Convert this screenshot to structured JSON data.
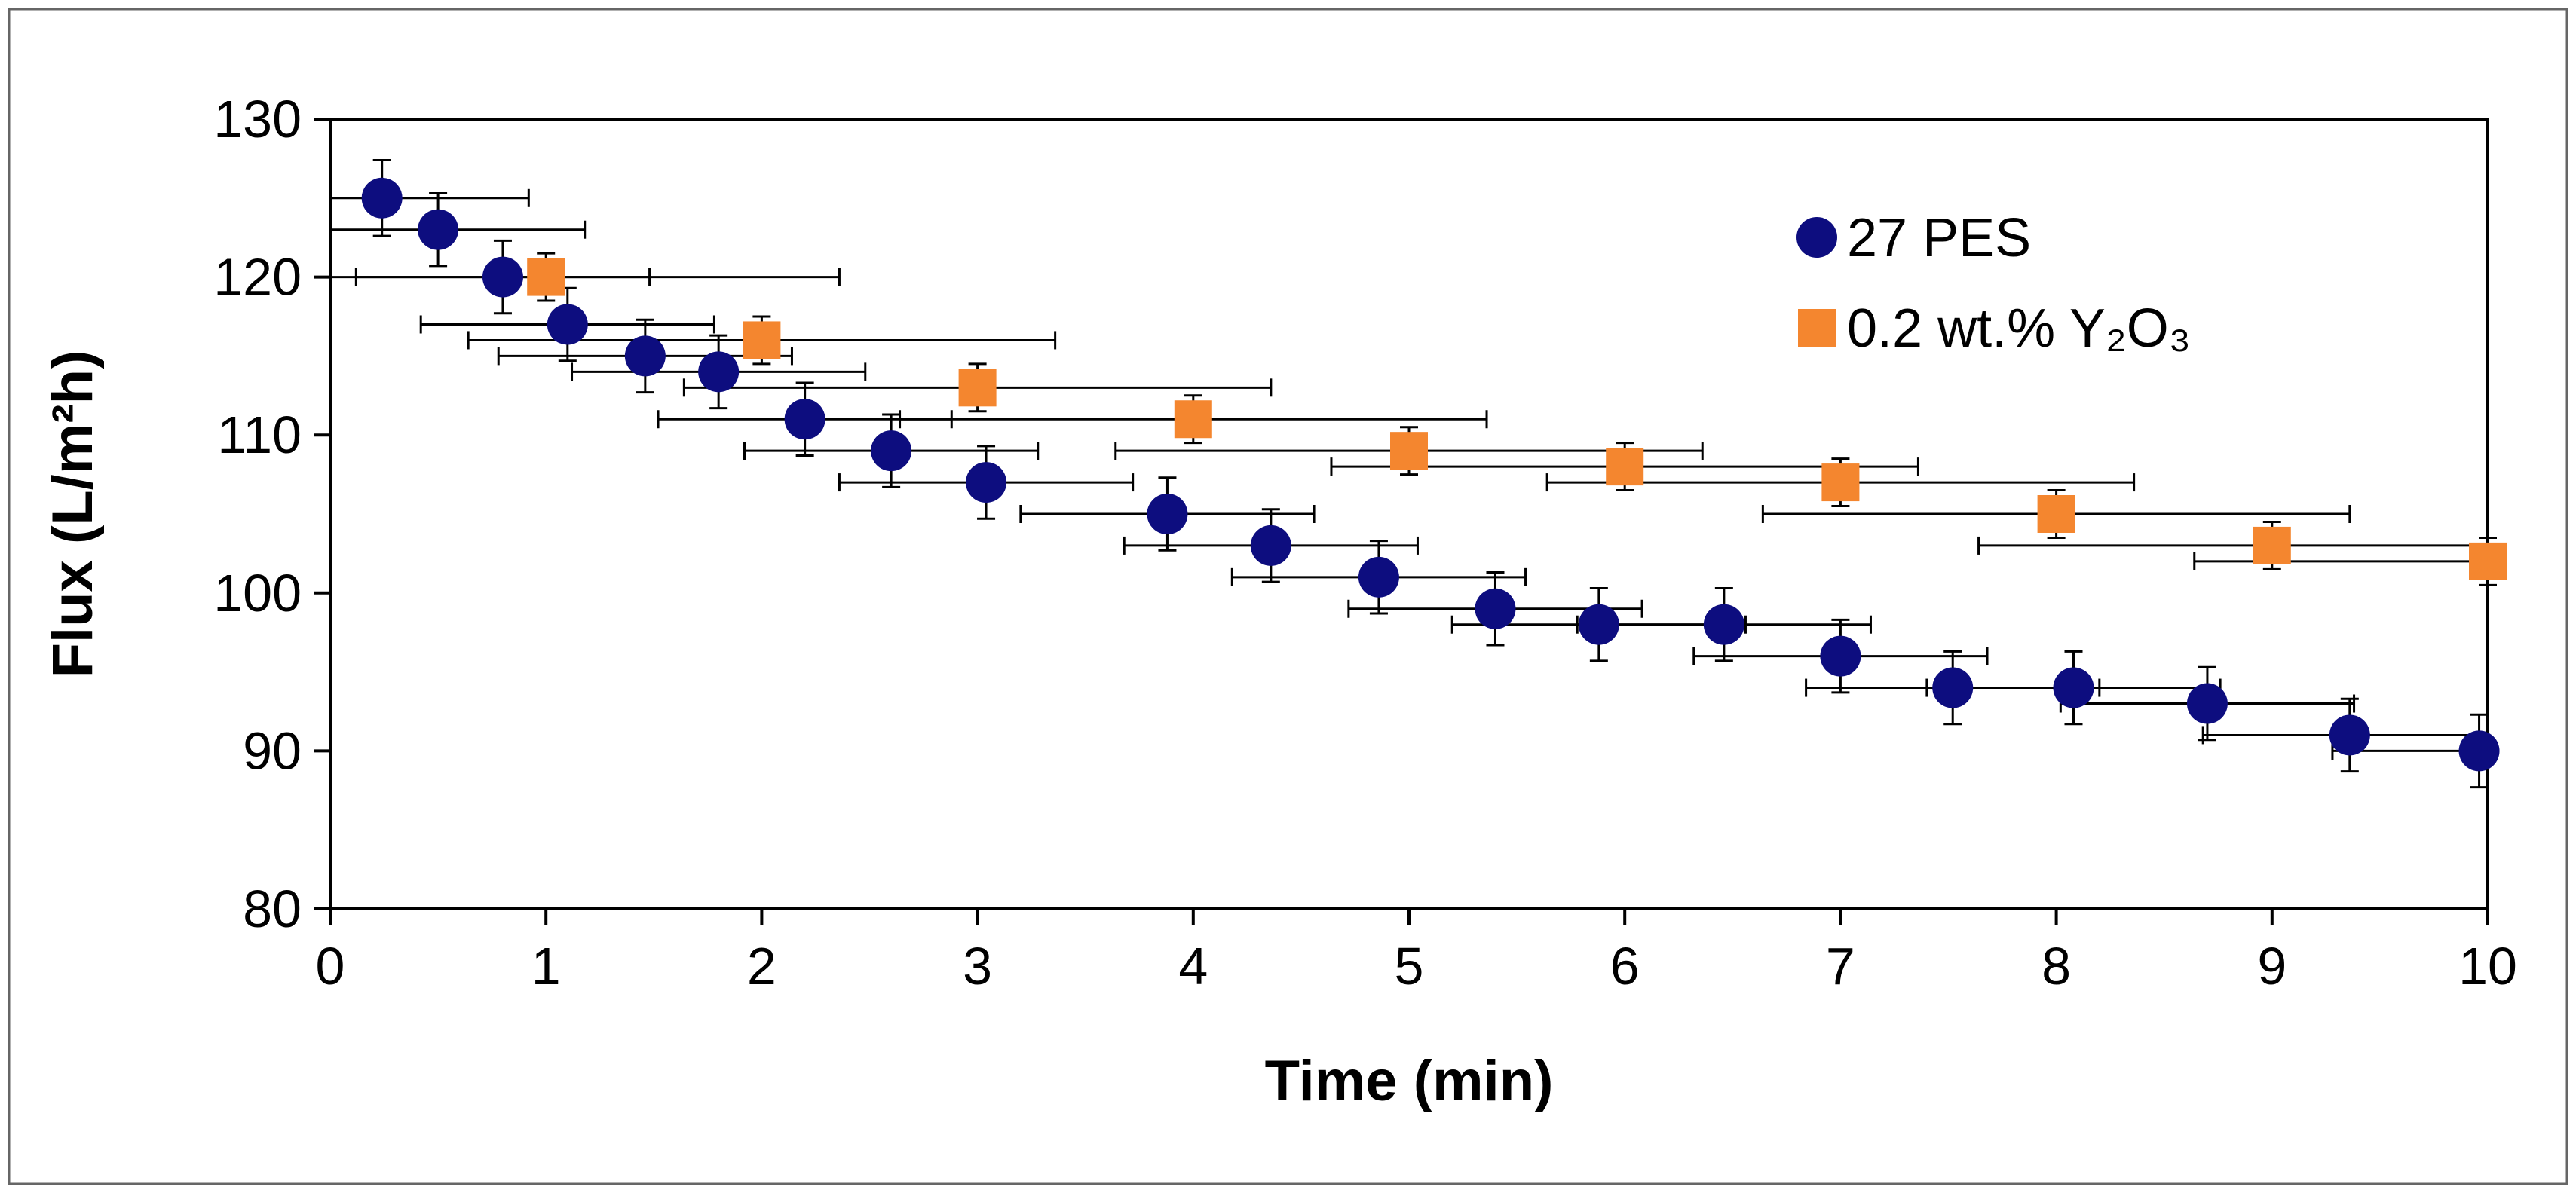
{
  "chart_data": {
    "type": "scatter",
    "title": "",
    "xlabel": "Time (min)",
    "ylabel": "Flux (L/m²h)",
    "xlim": [
      0,
      10
    ],
    "ylim": [
      80,
      130
    ],
    "x_ticks": [
      "0",
      "1",
      "2",
      "3",
      "4",
      "5",
      "6",
      "7",
      "8",
      "9",
      "10"
    ],
    "y_ticks": [
      "80",
      "90",
      "100",
      "110",
      "120",
      "130"
    ],
    "grid": false,
    "legend_position": "top-right",
    "series": [
      {
        "name": "27 PES",
        "marker": "circle",
        "color": "#0d0d7f",
        "points": [
          {
            "x": 0.24,
            "y": 125,
            "xerr": 0.68,
            "yerr": 2.4
          },
          {
            "x": 0.5,
            "y": 123,
            "xerr": 0.68,
            "yerr": 2.3
          },
          {
            "x": 0.8,
            "y": 120,
            "xerr": 0.68,
            "yerr": 2.3
          },
          {
            "x": 1.1,
            "y": 117,
            "xerr": 0.68,
            "yerr": 2.3
          },
          {
            "x": 1.46,
            "y": 115,
            "xerr": 0.68,
            "yerr": 2.3
          },
          {
            "x": 1.8,
            "y": 114,
            "xerr": 0.68,
            "yerr": 2.3
          },
          {
            "x": 2.2,
            "y": 111,
            "xerr": 0.68,
            "yerr": 2.3
          },
          {
            "x": 2.6,
            "y": 109,
            "xerr": 0.68,
            "yerr": 2.3
          },
          {
            "x": 3.04,
            "y": 107,
            "xerr": 0.68,
            "yerr": 2.3
          },
          {
            "x": 3.88,
            "y": 105,
            "xerr": 0.68,
            "yerr": 2.3
          },
          {
            "x": 4.36,
            "y": 103,
            "xerr": 0.68,
            "yerr": 2.3
          },
          {
            "x": 4.86,
            "y": 101,
            "xerr": 0.68,
            "yerr": 2.3
          },
          {
            "x": 5.4,
            "y": 99,
            "xerr": 0.68,
            "yerr": 2.3
          },
          {
            "x": 5.88,
            "y": 98,
            "xerr": 0.68,
            "yerr": 2.3
          },
          {
            "x": 6.46,
            "y": 98,
            "xerr": 0.68,
            "yerr": 2.3
          },
          {
            "x": 7.0,
            "y": 96,
            "xerr": 0.68,
            "yerr": 2.3
          },
          {
            "x": 7.52,
            "y": 94,
            "xerr": 0.68,
            "yerr": 2.3
          },
          {
            "x": 8.08,
            "y": 94,
            "xerr": 0.68,
            "yerr": 2.3
          },
          {
            "x": 8.7,
            "y": 93,
            "xerr": 0.68,
            "yerr": 2.3
          },
          {
            "x": 9.36,
            "y": 91,
            "xerr": 0.68,
            "yerr": 2.3
          },
          {
            "x": 9.96,
            "y": 90,
            "xerr": 0.68,
            "yerr": 2.3
          }
        ]
      },
      {
        "name": "0.2 wt.% Y₂O₃",
        "marker": "square",
        "color": "#f4862f",
        "points": [
          {
            "x": 1,
            "y": 120,
            "xerr": 1.36,
            "yerr": 1.5
          },
          {
            "x": 2,
            "y": 116,
            "xerr": 1.36,
            "yerr": 1.5
          },
          {
            "x": 3,
            "y": 113,
            "xerr": 1.36,
            "yerr": 1.5
          },
          {
            "x": 4,
            "y": 111,
            "xerr": 1.36,
            "yerr": 1.5
          },
          {
            "x": 5,
            "y": 109,
            "xerr": 1.36,
            "yerr": 1.5
          },
          {
            "x": 6,
            "y": 108,
            "xerr": 1.36,
            "yerr": 1.5
          },
          {
            "x": 7,
            "y": 107,
            "xerr": 1.36,
            "yerr": 1.5
          },
          {
            "x": 8,
            "y": 105,
            "xerr": 1.36,
            "yerr": 1.5
          },
          {
            "x": 9,
            "y": 103,
            "xerr": 1.36,
            "yerr": 1.5
          },
          {
            "x": 10,
            "y": 102,
            "xerr": 1.36,
            "yerr": 1.5
          }
        ]
      }
    ]
  }
}
